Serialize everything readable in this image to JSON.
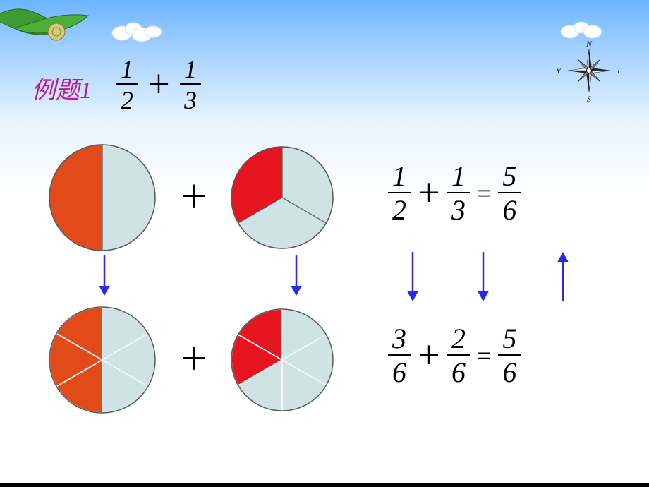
{
  "title": {
    "text": "例题1",
    "color": "#c01890"
  },
  "header_fraction": {
    "a": {
      "num": "1",
      "den": "2"
    },
    "op": "＋",
    "b": {
      "num": "1",
      "den": "3"
    }
  },
  "compass": {
    "n": "N",
    "s": "S",
    "e": "E",
    "w": "W"
  },
  "equation_top": {
    "a": {
      "num": "1",
      "den": "2"
    },
    "op1": "＋",
    "b": {
      "num": "1",
      "den": "3"
    },
    "eq": "=",
    "c": {
      "num": "5",
      "den": "6"
    }
  },
  "equation_bottom": {
    "a": {
      "num": "3",
      "den": "6"
    },
    "op1": "＋",
    "b": {
      "num": "2",
      "den": "6"
    },
    "eq": "=",
    "c": {
      "num": "5",
      "den": "6"
    }
  },
  "plus1": "＋",
  "plus2": "＋",
  "colors": {
    "red_dark": "#e24a1a",
    "red_bright": "#e6141e",
    "blue_pale": "#cfe3e5",
    "stroke": "#5a5a5a",
    "stroke_light": "#f6f6f6",
    "arrow": "#2a2ae0"
  },
  "pie_radius": 75,
  "pie_radius_small": 72,
  "arrow": {
    "length": 55,
    "head": 14
  }
}
